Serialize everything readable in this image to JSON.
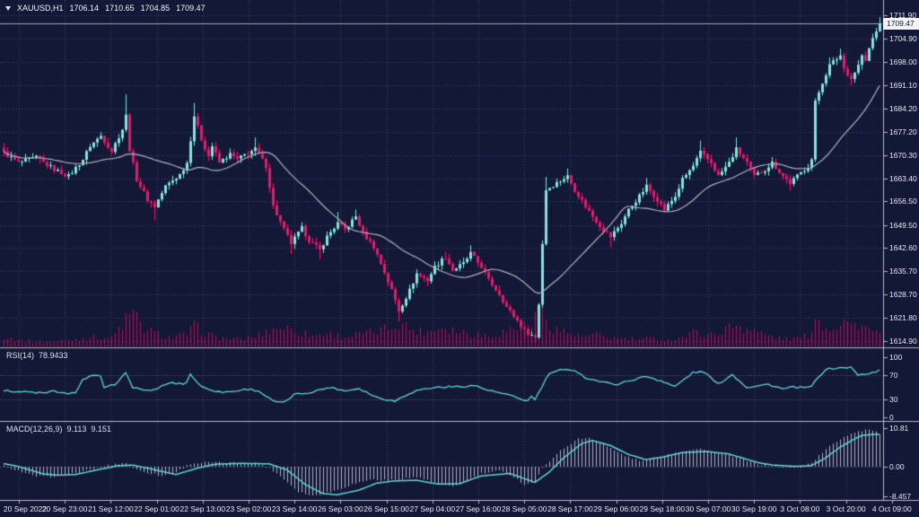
{
  "header": {
    "symbol": "XAUUSD,H1",
    "open": "1706.14",
    "high": "1710.65",
    "low": "1704.85",
    "close": "1709.47"
  },
  "colors": {
    "background": "#141837",
    "grid": "#3c4168",
    "level_line": "#555c84",
    "bull": "#7fe7dc",
    "bear": "#f0136b",
    "ma_line": "#aeb1bf",
    "volume": "#9e1a5c",
    "indicator_line": "#5fd6d3",
    "macd_histogram": "#c9cde2",
    "axis_text": "#e6e9f2",
    "separator": "#b6bac6",
    "current_price_line": "#9fa4b4",
    "price_box_bg": "#f2f3f6",
    "price_box_text": "#14172b"
  },
  "chart_data": {
    "type": "candlestick",
    "instrument": "XAUUSD",
    "timeframe": "H1",
    "title": "XAUUSD,H1 1706.14 1710.65 1704.85 1709.47",
    "current_price": 1709.47,
    "current_price_label": "1709.47",
    "bars_count": 245,
    "ylim": [
      1614.9,
      1711.9
    ],
    "price_axis_ticks": [
      "1711.90",
      "1704.90",
      "1698.00",
      "1691.10",
      "1684.20",
      "1677.20",
      "1670.30",
      "1663.40",
      "1656.50",
      "1649.50",
      "1642.60",
      "1635.70",
      "1628.70",
      "1621.80",
      "1614.90"
    ],
    "time_axis_labels": [
      "20 Sep 2022",
      "20 Sep 23:00",
      "21 Sep 12:00",
      "22 Sep 01:00",
      "22 Sep 13:00",
      "23 Sep 02:00",
      "23 Sep 14:00",
      "26 Sep 03:00",
      "26 Sep 15:00",
      "27 Sep 04:00",
      "27 Sep 16:00",
      "28 Sep 05:00",
      "28 Sep 17:00",
      "29 Sep 06:00",
      "29 Sep 18:00",
      "30 Sep 07:00",
      "30 Sep 19:00",
      "3 Oct 08:00",
      "3 Oct 20:00",
      "4 Oct 09:00"
    ],
    "price_waypoints": [
      [
        0,
        1671
      ],
      [
        4,
        1668
      ],
      [
        9,
        1669.5
      ],
      [
        14,
        1666
      ],
      [
        18,
        1664
      ],
      [
        22,
        1669
      ],
      [
        24,
        1673
      ],
      [
        27,
        1676
      ],
      [
        30,
        1671.5
      ],
      [
        33,
        1678
      ],
      [
        34,
        1682,
        6
      ],
      [
        35,
        1672
      ],
      [
        37,
        1663
      ],
      [
        40,
        1657
      ],
      [
        42,
        1655,
        0,
        4
      ],
      [
        45,
        1661
      ],
      [
        49,
        1664.5
      ],
      [
        51,
        1668
      ],
      [
        53,
        1682,
        4
      ],
      [
        55,
        1675
      ],
      [
        57,
        1670
      ],
      [
        58,
        1673
      ],
      [
        60,
        1668
      ],
      [
        63,
        1670.5
      ],
      [
        65,
        1669
      ],
      [
        68,
        1671
      ],
      [
        70,
        1672,
        3
      ],
      [
        73,
        1667
      ],
      [
        75,
        1655
      ],
      [
        78,
        1648
      ],
      [
        80,
        1644,
        0,
        3
      ],
      [
        83,
        1648.5
      ],
      [
        85,
        1645
      ],
      [
        88,
        1642,
        0,
        3
      ],
      [
        90,
        1646
      ],
      [
        93,
        1650,
        3
      ],
      [
        95,
        1648
      ],
      [
        98,
        1652,
        2
      ],
      [
        100,
        1647
      ],
      [
        103,
        1643
      ],
      [
        105,
        1638
      ],
      [
        108,
        1630
      ],
      [
        110,
        1624,
        0,
        3
      ],
      [
        113,
        1630
      ],
      [
        115,
        1635
      ],
      [
        118,
        1633
      ],
      [
        120,
        1637
      ],
      [
        123,
        1640,
        2
      ],
      [
        125,
        1636
      ],
      [
        128,
        1638
      ],
      [
        130,
        1641,
        2
      ],
      [
        133,
        1637
      ],
      [
        135,
        1633
      ],
      [
        138,
        1629
      ],
      [
        140,
        1625
      ],
      [
        143,
        1621
      ],
      [
        145,
        1618,
        0,
        3
      ],
      [
        148,
        1616,
        0,
        1.1
      ],
      [
        149,
        1626
      ],
      [
        150,
        1644
      ],
      [
        151,
        1660,
        4
      ],
      [
        154,
        1662
      ],
      [
        157,
        1664,
        2
      ],
      [
        159,
        1660
      ],
      [
        162,
        1655
      ],
      [
        164,
        1652
      ],
      [
        167,
        1648
      ],
      [
        169,
        1646,
        0,
        3
      ],
      [
        172,
        1650
      ],
      [
        174,
        1654
      ],
      [
        177,
        1658
      ],
      [
        179,
        1661,
        2
      ],
      [
        182,
        1657
      ],
      [
        184,
        1654
      ],
      [
        187,
        1658
      ],
      [
        189,
        1663
      ],
      [
        192,
        1667
      ],
      [
        194,
        1671,
        3
      ],
      [
        197,
        1668
      ],
      [
        199,
        1664
      ],
      [
        202,
        1668
      ],
      [
        204,
        1672,
        3
      ],
      [
        207,
        1668
      ],
      [
        209,
        1664
      ],
      [
        212,
        1666
      ],
      [
        214,
        1668
      ],
      [
        217,
        1664
      ],
      [
        219,
        1662,
        0,
        2
      ],
      [
        222,
        1665
      ],
      [
        224,
        1667
      ],
      [
        225,
        1669
      ],
      [
        226,
        1686
      ],
      [
        228,
        1692
      ],
      [
        230,
        1697,
        2
      ],
      [
        233,
        1700,
        2
      ],
      [
        234,
        1696
      ],
      [
        236,
        1693,
        0,
        2
      ],
      [
        238,
        1697
      ],
      [
        239,
        1700
      ],
      [
        240,
        1698
      ],
      [
        241,
        1702
      ],
      [
        242,
        1705
      ],
      [
        243,
        1707
      ],
      [
        244,
        1709.47,
        1.9
      ]
    ],
    "volume_waypoints": [
      [
        0,
        14
      ],
      [
        6,
        8
      ],
      [
        12,
        7
      ],
      [
        18,
        9
      ],
      [
        24,
        14
      ],
      [
        30,
        12
      ],
      [
        34,
        40
      ],
      [
        36,
        48
      ],
      [
        39,
        26
      ],
      [
        43,
        18
      ],
      [
        47,
        13
      ],
      [
        51,
        18
      ],
      [
        53,
        30
      ],
      [
        56,
        20
      ],
      [
        60,
        13
      ],
      [
        66,
        10
      ],
      [
        70,
        15
      ],
      [
        74,
        24
      ],
      [
        77,
        30
      ],
      [
        81,
        24
      ],
      [
        86,
        16
      ],
      [
        90,
        20
      ],
      [
        95,
        14
      ],
      [
        99,
        18
      ],
      [
        104,
        22
      ],
      [
        108,
        30
      ],
      [
        110,
        36
      ],
      [
        114,
        24
      ],
      [
        118,
        22
      ],
      [
        122,
        30
      ],
      [
        126,
        24
      ],
      [
        131,
        19
      ],
      [
        135,
        16
      ],
      [
        139,
        22
      ],
      [
        144,
        30
      ],
      [
        148,
        40
      ],
      [
        150,
        46
      ],
      [
        153,
        28
      ],
      [
        157,
        20
      ],
      [
        161,
        14
      ],
      [
        165,
        17
      ],
      [
        169,
        13
      ],
      [
        173,
        11
      ],
      [
        177,
        10
      ],
      [
        181,
        12
      ],
      [
        185,
        9
      ],
      [
        189,
        14
      ],
      [
        193,
        22
      ],
      [
        197,
        17
      ],
      [
        201,
        26
      ],
      [
        204,
        32
      ],
      [
        208,
        26
      ],
      [
        212,
        17
      ],
      [
        216,
        12
      ],
      [
        220,
        11
      ],
      [
        224,
        16
      ],
      [
        226,
        42
      ],
      [
        229,
        28
      ],
      [
        232,
        32
      ],
      [
        234,
        40
      ],
      [
        236,
        30
      ],
      [
        238,
        35
      ],
      [
        241,
        24
      ],
      [
        244,
        16
      ]
    ],
    "moving_average_period": 24,
    "rsi": {
      "label": "RSI(14)",
      "value": "78.9433",
      "ticks": [
        "100",
        "70",
        "30",
        "0"
      ],
      "levels": [
        70,
        30
      ],
      "range": [
        0,
        100
      ],
      "waypoints": [
        [
          0,
          44
        ],
        [
          7,
          42
        ],
        [
          12,
          40
        ],
        [
          14,
          44
        ],
        [
          18,
          38
        ],
        [
          20,
          42
        ],
        [
          22,
          62
        ],
        [
          24,
          68
        ],
        [
          27,
          69
        ],
        [
          28,
          48
        ],
        [
          31,
          55
        ],
        [
          34,
          73
        ],
        [
          36,
          50
        ],
        [
          41,
          43
        ],
        [
          46,
          57
        ],
        [
          50,
          56
        ],
        [
          51,
          58
        ],
        [
          52,
          72
        ],
        [
          55,
          51
        ],
        [
          60,
          42
        ],
        [
          64,
          43
        ],
        [
          68,
          47
        ],
        [
          71,
          44
        ],
        [
          75,
          27
        ],
        [
          78,
          24
        ],
        [
          81,
          38
        ],
        [
          85,
          41
        ],
        [
          91,
          50
        ],
        [
          95,
          44
        ],
        [
          99,
          48
        ],
        [
          104,
          33
        ],
        [
          109,
          27
        ],
        [
          113,
          40
        ],
        [
          116,
          46
        ],
        [
          121,
          50
        ],
        [
          127,
          51
        ],
        [
          131,
          53
        ],
        [
          135,
          45
        ],
        [
          140,
          38
        ],
        [
          146,
          27
        ],
        [
          147,
          35
        ],
        [
          148,
          29
        ],
        [
          152,
          73
        ],
        [
          155,
          78
        ],
        [
          159,
          79
        ],
        [
          162,
          66
        ],
        [
          167,
          58
        ],
        [
          171,
          55
        ],
        [
          175,
          62
        ],
        [
          179,
          68
        ],
        [
          183,
          61
        ],
        [
          187,
          51
        ],
        [
          192,
          74
        ],
        [
          195,
          76
        ],
        [
          199,
          55
        ],
        [
          203,
          71
        ],
        [
          207,
          50
        ],
        [
          210,
          52
        ],
        [
          213,
          55
        ],
        [
          217,
          47
        ],
        [
          220,
          50
        ],
        [
          224,
          49
        ],
        [
          225,
          52
        ],
        [
          229,
          80
        ],
        [
          233,
          82
        ],
        [
          236,
          83
        ],
        [
          238,
          70
        ],
        [
          240,
          72
        ],
        [
          243,
          75
        ],
        [
          244,
          78.94
        ]
      ]
    },
    "macd": {
      "label": "MACD(12,26,9)",
      "main_value": "9.113",
      "signal_value": "9.151",
      "ticks": [
        "10.81",
        "0.00",
        "-8.457"
      ],
      "tick_values": [
        10.81,
        0,
        -8.457
      ],
      "signal_waypoints": [
        [
          0,
          0.9
        ],
        [
          4,
          0.1
        ],
        [
          11,
          -2.0
        ],
        [
          15,
          -2.4
        ],
        [
          20,
          -2.2
        ],
        [
          26,
          -0.9
        ],
        [
          32,
          0.3
        ],
        [
          36,
          0.45
        ],
        [
          41,
          -0.6
        ],
        [
          48,
          -2.2
        ],
        [
          54,
          -0.4
        ],
        [
          59,
          0.7
        ],
        [
          66,
          0.95
        ],
        [
          74,
          0.8
        ],
        [
          79,
          -0.9
        ],
        [
          84,
          -5.0
        ],
        [
          89,
          -7.6
        ],
        [
          93,
          -7.9
        ],
        [
          99,
          -6.6
        ],
        [
          104,
          -4.6
        ],
        [
          109,
          -4.0
        ],
        [
          115,
          -3.8
        ],
        [
          121,
          -4.9
        ],
        [
          127,
          -4.8
        ],
        [
          133,
          -2.6
        ],
        [
          141,
          -1.9
        ],
        [
          148,
          -4.4
        ],
        [
          152,
          -1.5
        ],
        [
          156,
          2.5
        ],
        [
          161,
          6.5
        ],
        [
          164,
          7.4
        ],
        [
          169,
          6.0
        ],
        [
          174,
          3.5
        ],
        [
          179,
          2.0
        ],
        [
          184,
          2.8
        ],
        [
          189,
          4.0
        ],
        [
          196,
          4.3
        ],
        [
          202,
          3.6
        ],
        [
          206,
          2.4
        ],
        [
          210,
          1.2
        ],
        [
          214,
          0.5
        ],
        [
          220,
          0.1
        ],
        [
          225,
          0.3
        ],
        [
          229,
          2.5
        ],
        [
          233,
          5.5
        ],
        [
          237,
          7.8
        ],
        [
          239,
          8.8
        ],
        [
          242,
          9.1
        ],
        [
          244,
          9.151
        ]
      ],
      "hist_waypoints": [
        [
          0,
          0.3
        ],
        [
          3,
          -0.8
        ],
        [
          8,
          -2.6
        ],
        [
          12,
          -2.9
        ],
        [
          17,
          -2.3
        ],
        [
          22,
          -1.4
        ],
        [
          28,
          0.2
        ],
        [
          32,
          0.9
        ],
        [
          34,
          1.1
        ],
        [
          37,
          -0.9
        ],
        [
          44,
          -2.6
        ],
        [
          48,
          -1.5
        ],
        [
          52,
          0.9
        ],
        [
          56,
          1.2
        ],
        [
          62,
          1.1
        ],
        [
          70,
          1.0
        ],
        [
          74,
          -0.2
        ],
        [
          78,
          -3.5
        ],
        [
          82,
          -7.0
        ],
        [
          86,
          -8.2
        ],
        [
          92,
          -6.8
        ],
        [
          97,
          -5.0
        ],
        [
          102,
          -3.6
        ],
        [
          107,
          -3.9
        ],
        [
          112,
          -3.2
        ],
        [
          116,
          -3.0
        ],
        [
          121,
          -5.2
        ],
        [
          125,
          -5.6
        ],
        [
          129,
          -3.9
        ],
        [
          133,
          -2.0
        ],
        [
          138,
          -1.2
        ],
        [
          141,
          -2.2
        ],
        [
          145,
          -5.0
        ],
        [
          148,
          -4.2
        ],
        [
          150,
          -0.5
        ],
        [
          153,
          2.8
        ],
        [
          157,
          6.0
        ],
        [
          160,
          7.8
        ],
        [
          163,
          8.2
        ],
        [
          166,
          6.8
        ],
        [
          170,
          4.6
        ],
        [
          174,
          2.6
        ],
        [
          178,
          1.6
        ],
        [
          182,
          2.6
        ],
        [
          186,
          3.8
        ],
        [
          190,
          4.6
        ],
        [
          194,
          5.0
        ],
        [
          198,
          4.0
        ],
        [
          203,
          3.0
        ],
        [
          207,
          1.6
        ],
        [
          211,
          0.6
        ],
        [
          215,
          0.2
        ],
        [
          219,
          -0.2
        ],
        [
          222,
          0.0
        ],
        [
          225,
          1.2
        ],
        [
          228,
          4.0
        ],
        [
          231,
          6.5
        ],
        [
          234,
          8.5
        ],
        [
          237,
          9.8
        ],
        [
          240,
          10.5
        ],
        [
          242,
          10.3
        ],
        [
          244,
          9.113
        ]
      ]
    }
  }
}
